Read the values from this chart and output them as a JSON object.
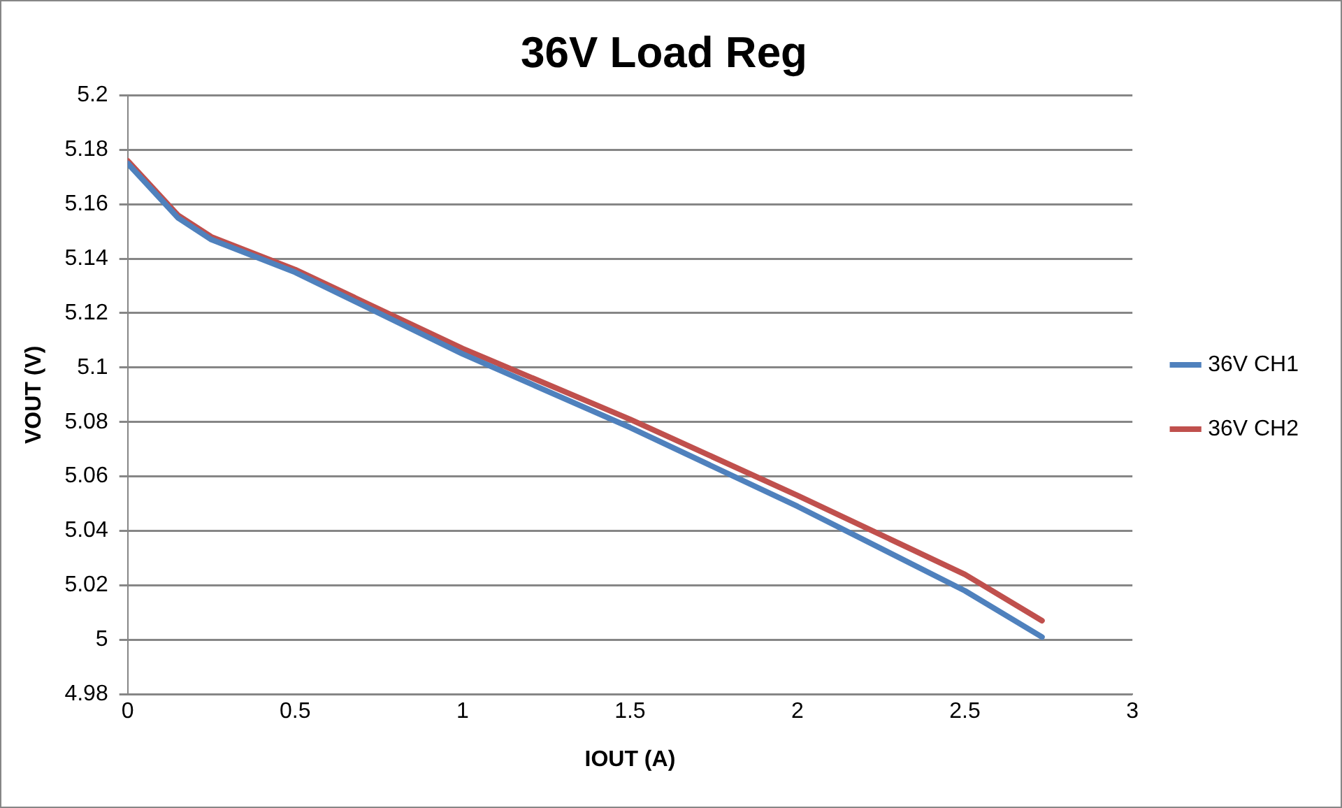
{
  "chart_data": {
    "type": "line",
    "title": "36V Load Reg",
    "xlabel": "IOUT (A)",
    "ylabel": "VOUT (V)",
    "xlim": [
      0,
      3
    ],
    "xticks": [
      0,
      0.5,
      1,
      1.5,
      2,
      2.5,
      3
    ],
    "ylim": [
      4.98,
      5.2
    ],
    "yticks": [
      4.98,
      5,
      5.02,
      5.04,
      5.06,
      5.08,
      5.1,
      5.12,
      5.14,
      5.16,
      5.18,
      5.2
    ],
    "grid": "y",
    "legend": "right",
    "marker": "none",
    "line_style": "solid",
    "series": [
      {
        "name": "36V CH1",
        "color": "#4f81bd",
        "x": [
          0,
          0.15,
          0.25,
          0.5,
          1,
          1.5,
          2,
          2.5,
          2.73
        ],
        "values": [
          5.175,
          5.155,
          5.147,
          5.135,
          5.105,
          5.078,
          5.049,
          5.018,
          5.001
        ]
      },
      {
        "name": "36V CH2",
        "color": "#c0504d",
        "x": [
          0,
          0.15,
          0.25,
          0.5,
          1,
          1.5,
          2,
          2.5,
          2.73
        ],
        "values": [
          5.176,
          5.156,
          5.148,
          5.136,
          5.107,
          5.081,
          5.053,
          5.024,
          5.007
        ]
      }
    ]
  }
}
